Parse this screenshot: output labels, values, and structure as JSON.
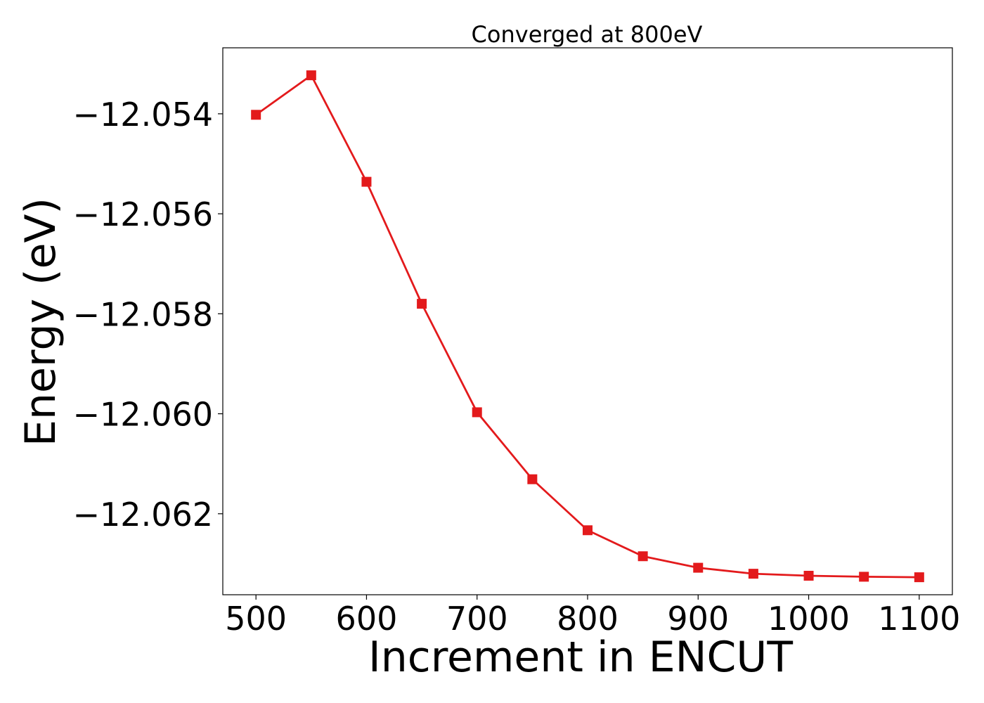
{
  "chart_data": {
    "type": "line",
    "title": "Converged at 800eV",
    "xlabel": "Increment in ENCUT",
    "ylabel": "Energy (eV)",
    "xlim": [
      470,
      1130
    ],
    "ylim": [
      -12.06362,
      -12.05268
    ],
    "x_ticks": [
      500,
      600,
      700,
      800,
      900,
      1000,
      1100
    ],
    "x_tick_labels": [
      "500",
      "600",
      "700",
      "800",
      "900",
      "1000",
      "1100"
    ],
    "y_ticks": [
      -12.054,
      -12.056,
      -12.058,
      -12.06,
      -12.062
    ],
    "y_tick_labels": [
      "−12.054",
      "−12.056",
      "−12.058",
      "−12.060",
      "−12.062"
    ],
    "grid": false,
    "series": [
      {
        "color": "#e31a1c",
        "marker": "square",
        "x": [
          500,
          550,
          600,
          650,
          700,
          750,
          800,
          850,
          900,
          950,
          1000,
          1050,
          1100
        ],
        "y": [
          -12.05402,
          -12.05323,
          -12.05536,
          -12.0578,
          -12.05997,
          -12.06131,
          -12.06233,
          -12.06285,
          -12.06308,
          -12.0632,
          -12.06324,
          -12.06326,
          -12.06327
        ]
      }
    ]
  }
}
